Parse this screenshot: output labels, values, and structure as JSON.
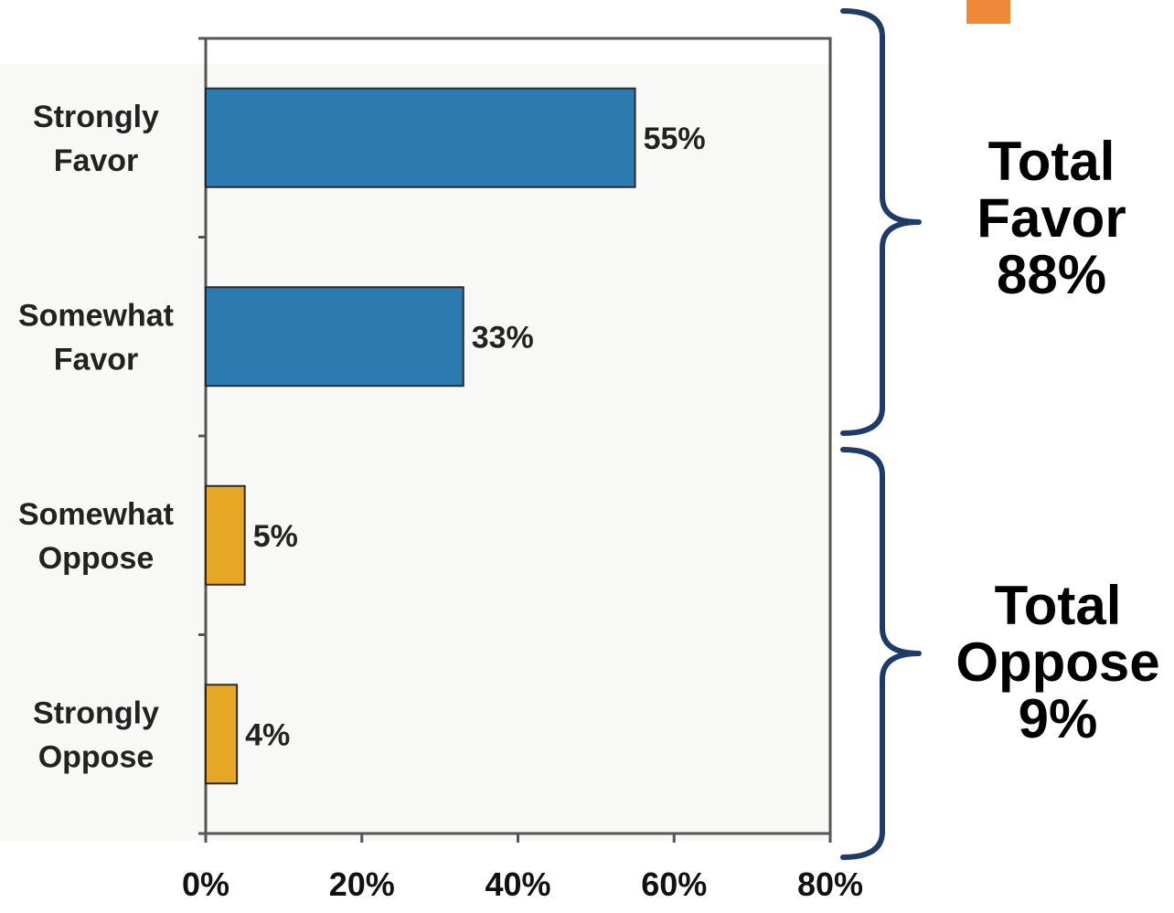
{
  "chart_data": {
    "type": "bar",
    "orientation": "horizontal",
    "categories": [
      "Strongly\nFavor",
      "Somewhat\nFavor",
      "Somewhat\nOppose",
      "Strongly\nOppose"
    ],
    "values": [
      55,
      33,
      5,
      4
    ],
    "value_labels": [
      "55%",
      "33%",
      "5%",
      "4%"
    ],
    "bar_colors": [
      "#2b7bb0",
      "#2b7bb0",
      "#e6a824",
      "#e6a824"
    ],
    "xlim": [
      0,
      80
    ],
    "x_ticks": [
      0,
      20,
      40,
      60,
      80
    ],
    "x_tick_labels": [
      "0%",
      "20%",
      "40%",
      "60%",
      "80%"
    ],
    "grid": false,
    "annotations": [
      {
        "text": "Total\nFavor\n88%",
        "spans": [
          "Strongly\nFavor",
          "Somewhat\nFavor"
        ]
      },
      {
        "text": "Total\nOppose\n9%",
        "spans": [
          "Somewhat\nOppose",
          "Strongly\nOppose"
        ]
      }
    ]
  },
  "colors": {
    "bracket": "#1f3c68",
    "accent_mark": "#f0883a"
  }
}
